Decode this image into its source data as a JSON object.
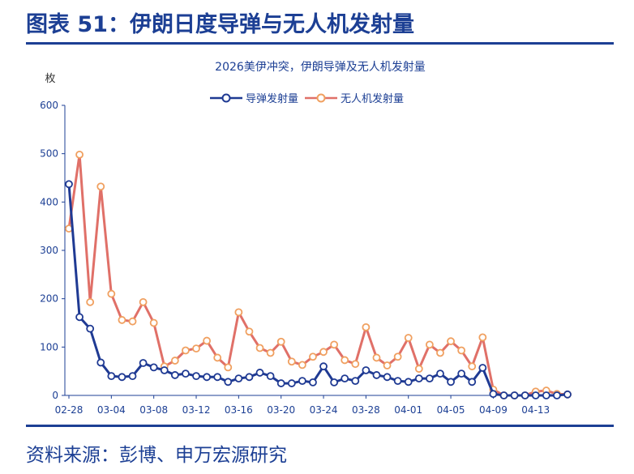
{
  "header": {
    "figure_title": "图表 51：伊朗日度导弹与无人机发射量"
  },
  "footer": {
    "source": "资料来源：彭博、申万宏源研究"
  },
  "colors": {
    "title_blue": "#1c3f94",
    "missile": "#1f3a93",
    "drone": "#e07068",
    "drone_marker": "#f0a060",
    "axis": "#1c3f94"
  },
  "chart_data": {
    "type": "line",
    "title": "2026美伊冲突，伊朗导弹及无人机发射量",
    "ylabel": "枚",
    "xlabel": "",
    "ylim": [
      0,
      600
    ],
    "yticks": [
      0,
      100,
      200,
      300,
      400,
      500,
      600
    ],
    "x_tick_labels": [
      "02-28",
      "03-04",
      "03-08",
      "03-12",
      "03-16",
      "03-20",
      "03-24",
      "03-28",
      "04-01",
      "04-05",
      "04-09",
      "04-13"
    ],
    "grid": false,
    "legend": "top-center",
    "x": [
      "02-28",
      "03-01",
      "03-02",
      "03-03",
      "03-04",
      "03-05",
      "03-06",
      "03-07",
      "03-08",
      "03-09",
      "03-10",
      "03-11",
      "03-12",
      "03-13",
      "03-14",
      "03-15",
      "03-16",
      "03-17",
      "03-18",
      "03-19",
      "03-20",
      "03-21",
      "03-22",
      "03-23",
      "03-24",
      "03-25",
      "03-26",
      "03-27",
      "03-28",
      "03-29",
      "03-30",
      "03-31",
      "04-01",
      "04-02",
      "04-03",
      "04-04",
      "04-05",
      "04-06",
      "04-07",
      "04-08",
      "04-09",
      "04-10",
      "04-11",
      "04-12",
      "04-13",
      "04-14",
      "04-15",
      "04-16"
    ],
    "series": [
      {
        "name": "导弹发射量",
        "values": [
          437,
          162,
          138,
          68,
          40,
          38,
          40,
          67,
          58,
          52,
          42,
          45,
          40,
          38,
          38,
          28,
          35,
          38,
          47,
          40,
          25,
          25,
          30,
          27,
          60,
          27,
          35,
          30,
          52,
          42,
          38,
          30,
          28,
          35,
          35,
          45,
          28,
          45,
          28,
          57,
          3,
          0,
          0,
          0,
          0,
          0,
          0,
          2
        ]
      },
      {
        "name": "无人机发射量",
        "values": [
          345,
          498,
          193,
          432,
          210,
          156,
          153,
          193,
          150,
          60,
          72,
          93,
          97,
          113,
          78,
          58,
          172,
          132,
          98,
          88,
          111,
          70,
          63,
          80,
          90,
          105,
          73,
          65,
          141,
          78,
          62,
          80,
          119,
          55,
          105,
          88,
          112,
          93,
          60,
          120,
          12,
          0,
          0,
          0,
          8,
          10,
          3,
          2
        ]
      }
    ]
  }
}
